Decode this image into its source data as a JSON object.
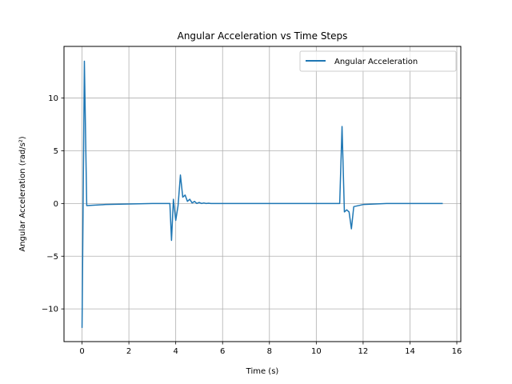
{
  "chart_data": {
    "type": "line",
    "title": "Angular Acceleration vs Time Steps",
    "xlabel": "Time (s)",
    "ylabel": "Angular Acceleration (rad/s²)",
    "xlim": [
      -0.77,
      16.17
    ],
    "ylim": [
      -13.1,
      14.9
    ],
    "xticks": [
      0,
      2,
      4,
      6,
      8,
      10,
      12,
      14,
      16
    ],
    "yticks": [
      -10,
      -5,
      0,
      5,
      10
    ],
    "grid": true,
    "legend_position": "top-right",
    "colors": {
      "series": "#1f77b4",
      "grid": "#b0b0b0"
    },
    "series": [
      {
        "name": "Angular Acceleration",
        "x": [
          0.0,
          0.1,
          0.2,
          1.0,
          2.0,
          3.0,
          3.75,
          3.82,
          3.9,
          4.0,
          4.1,
          4.2,
          4.3,
          4.4,
          4.5,
          4.6,
          4.7,
          4.8,
          4.9,
          5.0,
          5.1,
          5.2,
          5.3,
          5.4,
          5.5,
          5.6,
          6.0,
          8.0,
          10.0,
          11.0,
          11.1,
          11.2,
          11.3,
          11.4,
          11.5,
          11.6,
          12.0,
          13.0,
          14.0,
          15.4
        ],
        "y": [
          -11.8,
          13.5,
          -0.2,
          -0.1,
          -0.05,
          0.0,
          0.0,
          -3.5,
          0.4,
          -1.6,
          -0.2,
          2.7,
          0.6,
          0.8,
          0.2,
          0.4,
          0.05,
          0.2,
          0.0,
          0.1,
          0.0,
          0.05,
          0.0,
          0.03,
          0.0,
          0.0,
          0.0,
          0.0,
          0.0,
          0.0,
          7.3,
          -0.8,
          -0.6,
          -0.8,
          -2.4,
          -0.3,
          -0.1,
          0.0,
          0.0,
          0.0
        ]
      }
    ]
  }
}
